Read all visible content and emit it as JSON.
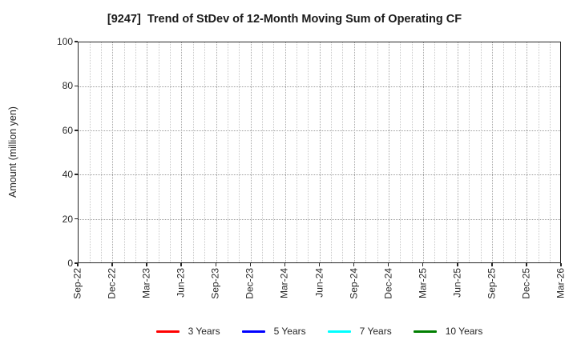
{
  "chart_data": {
    "type": "line",
    "title": "[9247]  Trend of StDev of 12-Month Moving Sum of Operating CF",
    "ylabel": "Amount (million yen)",
    "ylim": [
      0,
      100
    ],
    "yticks": [
      0,
      20,
      40,
      60,
      80,
      100
    ],
    "x_months_total": 42,
    "xticklabels": [
      "Sep-22",
      "Dec-22",
      "Mar-23",
      "Jun-23",
      "Sep-23",
      "Dec-23",
      "Mar-24",
      "Jun-24",
      "Sep-24",
      "Dec-24",
      "Mar-25",
      "Jun-25",
      "Sep-25",
      "Dec-25",
      "Mar-26"
    ],
    "grid": "dotted",
    "legend_position": "bottom-center",
    "series": [
      {
        "name": "3 Years",
        "color": "#ff0000",
        "values": []
      },
      {
        "name": "5 Years",
        "color": "#0000ff",
        "values": []
      },
      {
        "name": "7 Years",
        "color": "#00ffff",
        "values": []
      },
      {
        "name": "10 Years",
        "color": "#007f00",
        "values": []
      }
    ]
  }
}
